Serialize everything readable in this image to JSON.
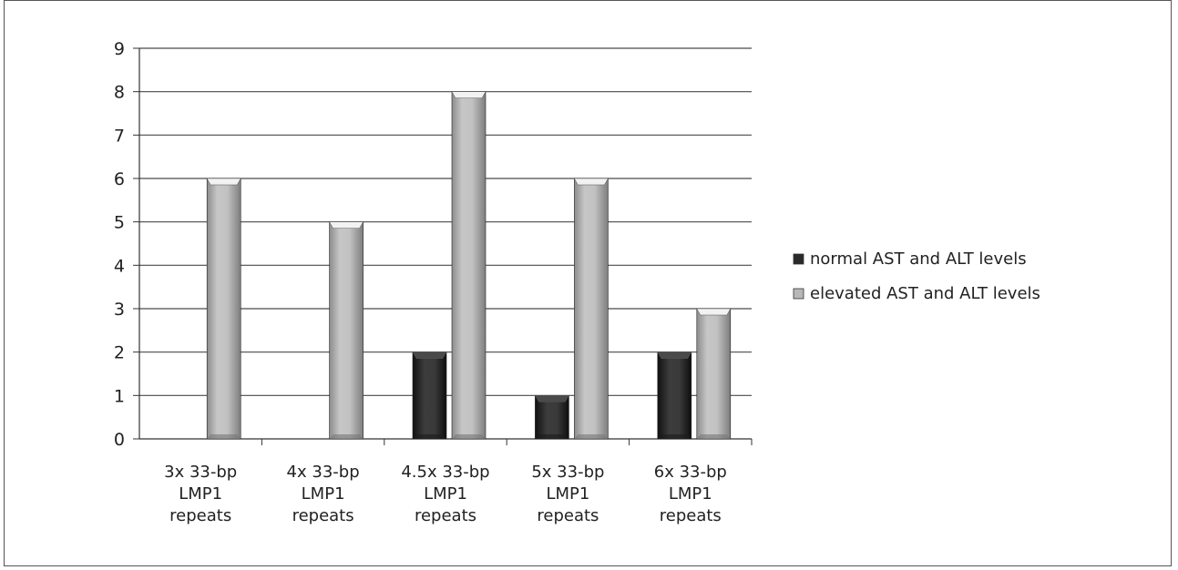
{
  "chart_data": {
    "type": "bar",
    "categories": [
      [
        "3x 33-bp",
        "LMP1",
        "repeats"
      ],
      [
        "4x 33-bp",
        "LMP1",
        "repeats"
      ],
      [
        "4.5x 33-bp",
        "LMP1",
        "repeats"
      ],
      [
        "5x 33-bp",
        "LMP1",
        "repeats"
      ],
      [
        "6x 33-bp",
        "LMP1",
        "repeats"
      ]
    ],
    "series": [
      {
        "name": "normal AST and ALT levels",
        "values": [
          0,
          0,
          2,
          1,
          2
        ],
        "color": "#2a2a2a"
      },
      {
        "name": "elevated AST and ALT levels",
        "values": [
          6,
          5,
          8,
          6,
          3
        ],
        "color": "#b8b8b8"
      }
    ],
    "ylim": [
      0,
      9
    ],
    "yticks": [
      0,
      1,
      2,
      3,
      4,
      5,
      6,
      7,
      8,
      9
    ],
    "grid": true,
    "legend_position": "right",
    "title": "",
    "xlabel": "",
    "ylabel": ""
  }
}
